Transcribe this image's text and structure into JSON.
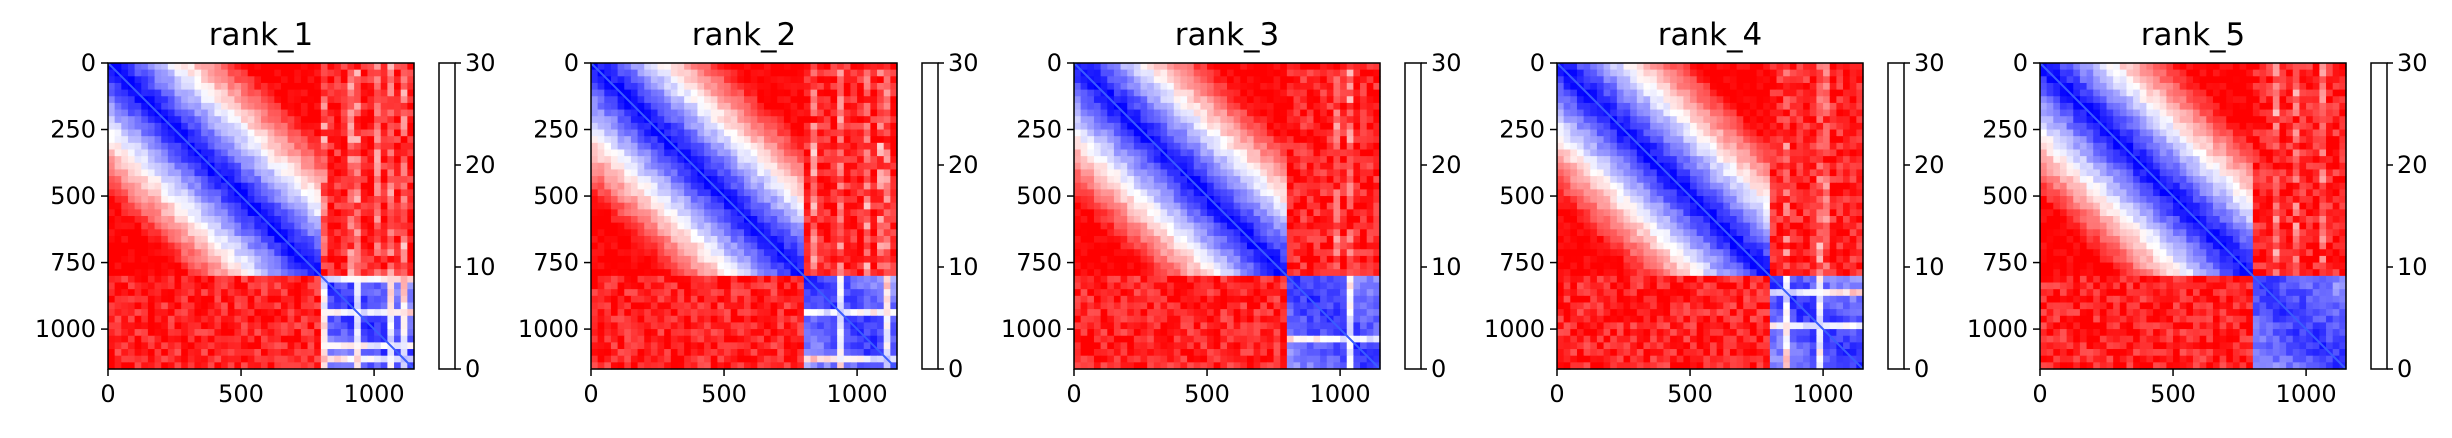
{
  "chart_data": [
    {
      "type": "heatmap",
      "title": "rank_1",
      "x_ticks": [
        0,
        500,
        1000
      ],
      "y_ticks": [
        0,
        250,
        500,
        750,
        1000
      ],
      "xlim": [
        0,
        1150
      ],
      "ylim": [
        1150,
        0
      ],
      "colorbar": {
        "ticks": [
          0,
          10,
          20,
          30
        ],
        "vmin": 0,
        "vmax": 30,
        "colormap": "bwr"
      },
      "block_boundary": 810,
      "matrix_size": 1150
    },
    {
      "type": "heatmap",
      "title": "rank_2",
      "x_ticks": [
        0,
        500,
        1000
      ],
      "y_ticks": [
        0,
        250,
        500,
        750,
        1000
      ],
      "xlim": [
        0,
        1150
      ],
      "ylim": [
        1150,
        0
      ],
      "colorbar": {
        "ticks": [
          0,
          10,
          20,
          30
        ],
        "vmin": 0,
        "vmax": 30,
        "colormap": "bwr"
      },
      "block_boundary": 810,
      "matrix_size": 1150
    },
    {
      "type": "heatmap",
      "title": "rank_3",
      "x_ticks": [
        0,
        500,
        1000
      ],
      "y_ticks": [
        0,
        250,
        500,
        750,
        1000
      ],
      "xlim": [
        0,
        1150
      ],
      "ylim": [
        1150,
        0
      ],
      "colorbar": {
        "ticks": [
          0,
          10,
          20,
          30
        ],
        "vmin": 0,
        "vmax": 30,
        "colormap": "bwr"
      },
      "block_boundary": 810,
      "matrix_size": 1150
    },
    {
      "type": "heatmap",
      "title": "rank_4",
      "x_ticks": [
        0,
        500,
        1000
      ],
      "y_ticks": [
        0,
        250,
        500,
        750,
        1000
      ],
      "xlim": [
        0,
        1150
      ],
      "ylim": [
        1150,
        0
      ],
      "colorbar": {
        "ticks": [
          0,
          10,
          20,
          30
        ],
        "vmin": 0,
        "vmax": 30,
        "colormap": "bwr"
      },
      "block_boundary": 810,
      "matrix_size": 1150
    },
    {
      "type": "heatmap",
      "title": "rank_5",
      "x_ticks": [
        0,
        500,
        1000
      ],
      "y_ticks": [
        0,
        250,
        500,
        750,
        1000
      ],
      "xlim": [
        0,
        1150
      ],
      "ylim": [
        1150,
        0
      ],
      "colorbar": {
        "ticks": [
          0,
          10,
          20,
          30
        ],
        "vmin": 0,
        "vmax": 30,
        "colormap": "bwr"
      },
      "block_boundary": 810,
      "matrix_size": 1150
    }
  ]
}
